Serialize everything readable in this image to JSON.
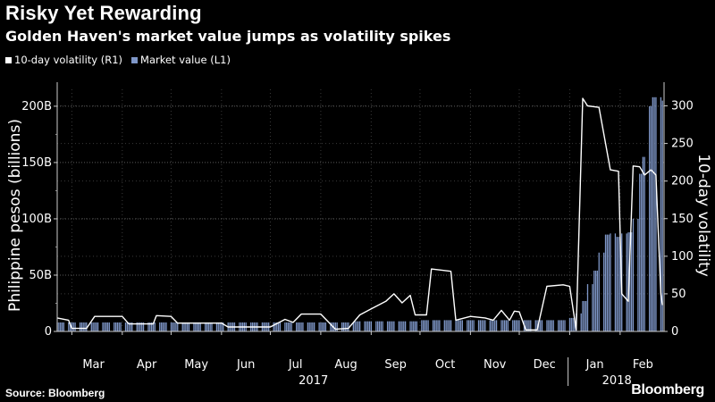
{
  "title": "Risky Yet Rewarding",
  "subtitle": "Golden Haven's market value jumps as volatility spikes",
  "legend": [
    {
      "label": "10-day volatility (R1)",
      "color": "#ffffff"
    },
    {
      "label": "Market value (L1)",
      "color": "#7f97c8"
    }
  ],
  "source": "Source: Bloomberg",
  "brand": "Bloomberg",
  "chart_data": {
    "type": "bar+line",
    "ylabel_left": "Philippine pesos (billions)",
    "ylabel_right": "10-day volatility",
    "left_axis": {
      "ylim": [
        0,
        215
      ],
      "ticks": [
        {
          "v": 0,
          "label": "0"
        },
        {
          "v": 50,
          "label": "50B"
        },
        {
          "v": 100,
          "label": "100B"
        },
        {
          "v": 150,
          "label": "150B"
        },
        {
          "v": 200,
          "label": "200B"
        }
      ]
    },
    "right_axis": {
      "ylim": [
        0,
        322
      ],
      "ticks": [
        {
          "v": 0,
          "label": "0"
        },
        {
          "v": 50,
          "label": "50"
        },
        {
          "v": 100,
          "label": "100"
        },
        {
          "v": 150,
          "label": "150"
        },
        {
          "v": 200,
          "label": "200"
        },
        {
          "v": 250,
          "label": "250"
        },
        {
          "v": 300,
          "label": "300"
        }
      ]
    },
    "month_labels": [
      "Mar",
      "Apr",
      "May",
      "Jun",
      "Jul",
      "Aug",
      "Sep",
      "Oct",
      "Nov",
      "Dec",
      "Jan",
      "Feb"
    ],
    "year_labels": [
      "2017",
      "2018"
    ],
    "grid": true,
    "legend_position": "top-left",
    "market_value": {
      "name": "Market value (L1)",
      "color": "#7f97c8",
      "x": [
        "2017-02-20",
        "2017-03-06",
        "2017-04-03",
        "2017-05-01",
        "2017-06-01",
        "2017-07-03",
        "2017-08-01",
        "2017-08-15",
        "2017-08-22",
        "2017-09-01",
        "2017-10-02",
        "2017-11-01",
        "2017-12-01",
        "2018-01-01",
        "2018-01-02",
        "2018-01-05",
        "2018-01-09",
        "2018-01-12",
        "2018-01-16",
        "2018-01-19",
        "2018-01-23",
        "2018-01-26",
        "2018-01-30",
        "2018-02-02",
        "2018-02-06",
        "2018-02-09",
        "2018-02-13",
        "2018-02-15",
        "2018-02-19",
        "2018-02-21",
        "2018-02-23",
        "2018-02-27"
      ],
      "values": [
        8,
        8,
        8,
        8,
        8,
        8,
        8,
        8,
        9,
        9,
        10,
        10,
        10,
        12,
        12,
        16,
        27,
        42,
        54,
        70,
        86,
        87,
        84,
        87,
        88,
        100,
        140,
        155,
        200,
        208,
        208,
        205
      ]
    },
    "volatility": {
      "name": "10-day volatility (R1)",
      "color": "#ffffff",
      "points": [
        [
          "2017-02-20",
          18
        ],
        [
          "2017-02-27",
          15
        ],
        [
          "2017-03-01",
          4
        ],
        [
          "2017-03-10",
          4
        ],
        [
          "2017-03-15",
          20
        ],
        [
          "2017-04-01",
          20
        ],
        [
          "2017-04-05",
          10
        ],
        [
          "2017-04-20",
          10
        ],
        [
          "2017-04-22",
          21
        ],
        [
          "2017-05-01",
          20
        ],
        [
          "2017-05-05",
          11
        ],
        [
          "2017-06-01",
          11
        ],
        [
          "2017-06-05",
          6
        ],
        [
          "2017-07-01",
          6
        ],
        [
          "2017-07-10",
          16
        ],
        [
          "2017-07-15",
          12
        ],
        [
          "2017-07-20",
          23
        ],
        [
          "2017-08-01",
          23
        ],
        [
          "2017-08-10",
          3
        ],
        [
          "2017-08-18",
          4
        ],
        [
          "2017-08-25",
          22
        ],
        [
          "2017-09-01",
          30
        ],
        [
          "2017-09-10",
          40
        ],
        [
          "2017-09-15",
          50
        ],
        [
          "2017-09-20",
          38
        ],
        [
          "2017-09-25",
          48
        ],
        [
          "2017-09-28",
          22
        ],
        [
          "2017-10-05",
          22
        ],
        [
          "2017-10-08",
          83
        ],
        [
          "2017-10-20",
          80
        ],
        [
          "2017-10-23",
          15
        ],
        [
          "2017-11-01",
          20
        ],
        [
          "2017-11-10",
          18
        ],
        [
          "2017-11-15",
          15
        ],
        [
          "2017-11-20",
          28
        ],
        [
          "2017-11-25",
          15
        ],
        [
          "2017-11-28",
          27
        ],
        [
          "2017-12-01",
          26
        ],
        [
          "2017-12-05",
          2
        ],
        [
          "2017-12-12",
          2
        ],
        [
          "2017-12-18",
          60
        ],
        [
          "2017-12-28",
          62
        ],
        [
          "2018-01-01",
          60
        ],
        [
          "2018-01-05",
          2
        ],
        [
          "2018-01-09",
          310
        ],
        [
          "2018-01-12",
          300
        ],
        [
          "2018-01-19",
          298
        ],
        [
          "2018-01-26",
          215
        ],
        [
          "2018-01-31",
          213
        ],
        [
          "2018-02-02",
          50
        ],
        [
          "2018-02-06",
          40
        ],
        [
          "2018-02-09",
          220
        ],
        [
          "2018-02-13",
          219
        ],
        [
          "2018-02-16",
          208
        ],
        [
          "2018-02-20",
          215
        ],
        [
          "2018-02-23",
          208
        ],
        [
          "2018-02-26",
          50
        ],
        [
          "2018-02-27",
          35
        ]
      ]
    }
  }
}
